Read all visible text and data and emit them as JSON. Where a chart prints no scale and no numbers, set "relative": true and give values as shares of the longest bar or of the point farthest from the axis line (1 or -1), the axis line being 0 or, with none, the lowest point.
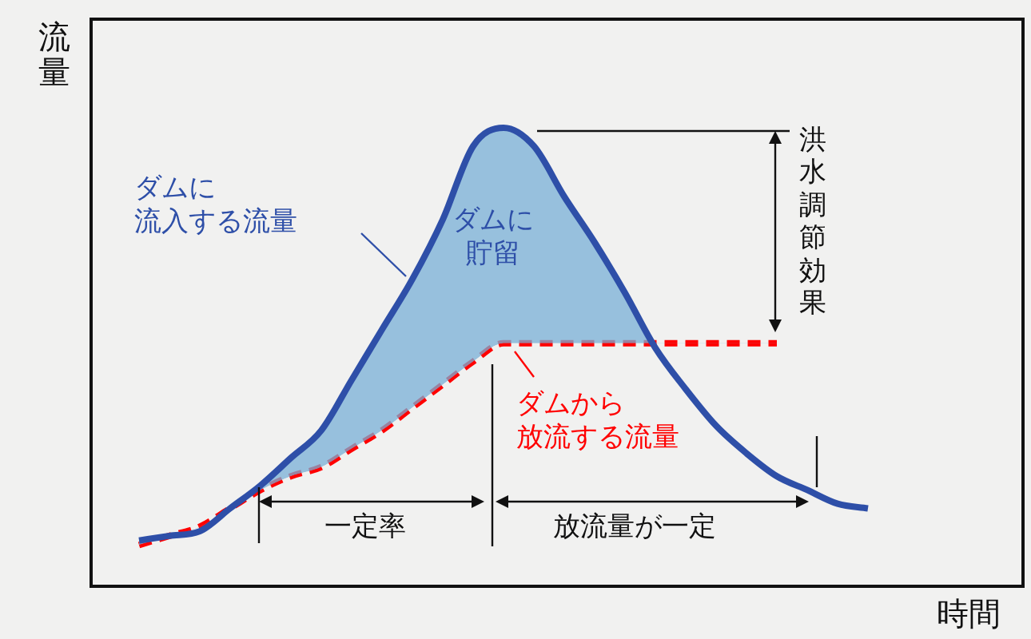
{
  "chart_data": {
    "type": "line",
    "relative": true,
    "xlabel": "時間",
    "ylabel": "流量",
    "marker": "none",
    "categories": [
      null,
      null,
      null,
      null,
      null,
      null,
      null,
      null,
      null,
      null,
      null,
      null,
      null,
      null,
      null,
      null,
      null,
      null,
      null,
      null,
      null,
      null,
      null,
      null,
      null
    ],
    "series": [
      {
        "name": "ダムに流入する流量",
        "color": "#2e4fa8",
        "line_style": "solid",
        "values": [
          0.1,
          0.11,
          0.12,
          0.17,
          0.22,
          0.28,
          0.34,
          0.45,
          0.56,
          0.67,
          0.8,
          0.96,
          1.0,
          0.96,
          0.85,
          0.75,
          0.64,
          0.52,
          0.43,
          0.35,
          0.29,
          0.24,
          0.21,
          0.18,
          0.17
        ]
      },
      {
        "name": "ダムから放流する流量",
        "color": "#ff0000",
        "line_style": "dashed",
        "values": [
          0.09,
          0.11,
          0.13,
          0.17,
          0.21,
          0.24,
          0.26,
          0.3,
          0.34,
          0.39,
          0.44,
          0.49,
          0.53,
          0.53,
          0.53,
          0.53,
          0.53,
          0.53,
          0.53,
          0.53,
          0.53,
          0.53,
          null,
          null,
          null
        ]
      }
    ],
    "annotations": [
      "ダムに貯留",
      "洪水調節効果",
      "一定率",
      "放流量が一定"
    ]
  }
}
